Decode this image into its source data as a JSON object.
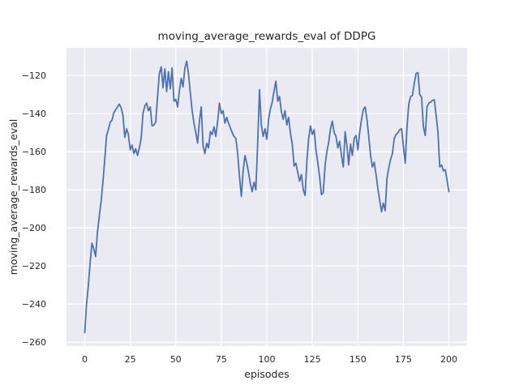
{
  "chart": {
    "title": "moving_average_rewards_eval of DDPG",
    "xlabel": "episodes",
    "ylabel": "moving_average_rewards_eval"
  },
  "colors": {
    "figure_bg": "#ffffff",
    "axes_bg": "#eaeaf2",
    "grid": "#ffffff",
    "line": "#4c72b0",
    "text": "#262626"
  },
  "chart_data": {
    "type": "line",
    "title": "moving_average_rewards_eval of DDPG",
    "xlabel": "episodes",
    "ylabel": "moving_average_rewards_eval",
    "style": "seaborn-darkgrid",
    "grid": true,
    "legend": "none",
    "xlim": [
      -10,
      210
    ],
    "ylim": [
      -262,
      -105.5
    ],
    "x_ticks": {
      "values": [
        0,
        25,
        50,
        75,
        100,
        125,
        150,
        175,
        200
      ],
      "labels": [
        "0",
        "25",
        "50",
        "75",
        "100",
        "125",
        "150",
        "175",
        "200"
      ]
    },
    "y_ticks": {
      "values": [
        -120,
        -140,
        -160,
        -180,
        -200,
        -220,
        -240,
        -260
      ],
      "labels": [
        "−120",
        "−140",
        "−160",
        "−180",
        "−200",
        "−220",
        "−240",
        "−260"
      ]
    },
    "series": [
      {
        "name": "moving_average_rewards_eval",
        "color": "#4c72b0",
        "x0": 0,
        "dx": 1,
        "values": [
          -255,
          -240,
          -230.5,
          -218,
          -208,
          -211,
          -215,
          -202,
          -194,
          -186,
          -176,
          -164,
          -151.5,
          -148.5,
          -144.5,
          -143.5,
          -139.5,
          -138,
          -136.5,
          -135,
          -137,
          -141,
          -152.5,
          -148,
          -151,
          -159,
          -156.5,
          -161,
          -158.5,
          -162,
          -158,
          -153,
          -140,
          -136,
          -134.5,
          -138.5,
          -136.5,
          -146.5,
          -146,
          -144.5,
          -131,
          -119,
          -115.5,
          -126.5,
          -116.5,
          -128.5,
          -118,
          -127,
          -116,
          -133.5,
          -132.5,
          -136.5,
          -128,
          -121.5,
          -126,
          -116,
          -112.5,
          -119,
          -129,
          -138.5,
          -145,
          -150,
          -155.5,
          -144,
          -136.5,
          -157,
          -161,
          -155.5,
          -158,
          -149.5,
          -151,
          -147,
          -152,
          -144,
          -134.5,
          -140,
          -138.5,
          -145,
          -142,
          -145,
          -147.5,
          -150,
          -152,
          -153,
          -161,
          -173,
          -183.5,
          -170,
          -162,
          -166,
          -171,
          -177,
          -181,
          -176,
          -180,
          -155,
          -127.5,
          -146,
          -152,
          -148,
          -153.5,
          -143,
          -137.5,
          -134,
          -128,
          -123,
          -133.5,
          -131,
          -139,
          -143,
          -138.5,
          -146,
          -142,
          -150.5,
          -156,
          -167.5,
          -166,
          -171,
          -175.5,
          -172,
          -180,
          -183,
          -165,
          -153,
          -146.5,
          -151,
          -148.5,
          -159,
          -166,
          -173,
          -182.5,
          -181.5,
          -167,
          -160,
          -155,
          -148,
          -144,
          -150,
          -152,
          -158,
          -154.5,
          -162,
          -168,
          -149.5,
          -157,
          -167,
          -156,
          -162,
          -153,
          -151.5,
          -159,
          -150,
          -143,
          -138,
          -136.5,
          -143,
          -152,
          -162,
          -168,
          -165.5,
          -172,
          -179.5,
          -185.5,
          -191.5,
          -187,
          -191,
          -174,
          -168.5,
          -164,
          -161,
          -153,
          -151,
          -150,
          -148.5,
          -148,
          -157,
          -166,
          -147,
          -135,
          -131,
          -130.5,
          -124,
          -119,
          -118.5,
          -130,
          -131.5,
          -147,
          -151.5,
          -136.5,
          -134.5,
          -134,
          -133,
          -132.8,
          -141,
          -150,
          -168,
          -167,
          -170,
          -169.5,
          -175,
          -181
        ]
      }
    ]
  }
}
